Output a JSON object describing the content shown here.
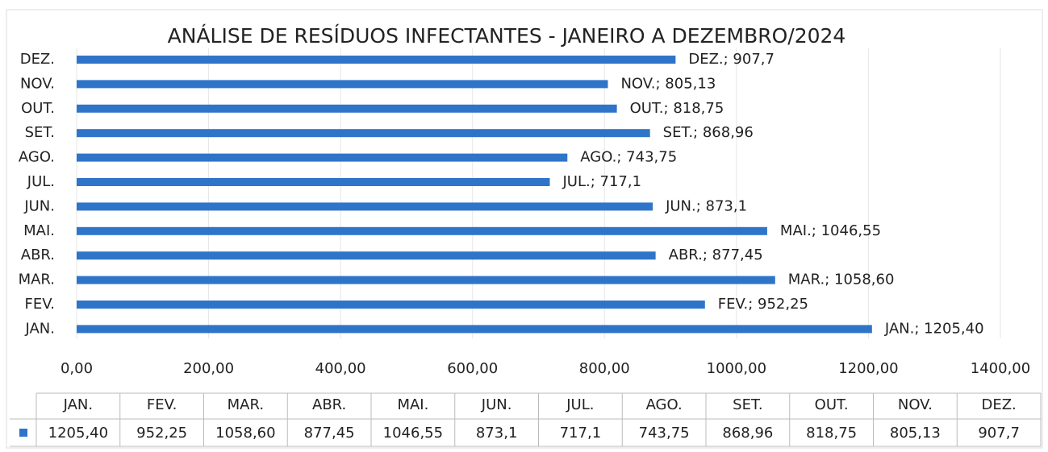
{
  "chart_data": {
    "type": "bar",
    "orientation": "horizontal",
    "title": "ANÁLISE DE RESÍDUOS INFECTANTES - JANEIRO A DEZEMBRO/2024",
    "categories": [
      "JAN.",
      "FEV.",
      "MAR.",
      "ABR.",
      "MAI.",
      "JUN.",
      "JUL.",
      "AGO.",
      "SET.",
      "OUT.",
      "NOV.",
      "DEZ."
    ],
    "values": [
      1205.4,
      952.25,
      1058.6,
      877.45,
      1046.55,
      873.1,
      717.1,
      743.75,
      868.96,
      818.75,
      805.13,
      907.7
    ],
    "value_labels": [
      "1205,40",
      "952,25",
      "1058,60",
      "877,45",
      "1046,55",
      "873,1",
      "717,1",
      "743,75",
      "868,96",
      "818,75",
      "805,13",
      "907,7"
    ],
    "data_labels": [
      "JAN.; 1205,40",
      "FEV.; 952,25",
      "MAR.; 1058,60",
      "ABR.; 877,45",
      "MAI.; 1046,55",
      "JUN.; 873,1",
      "JUL.; 717,1",
      "AGO.; 743,75",
      "SET.; 868,96",
      "OUT.; 818,75",
      "NOV.; 805,13",
      "DEZ.; 907,7"
    ],
    "color": "#2e75c9",
    "xlim": [
      0,
      1400
    ],
    "xticks": [
      {
        "value": 0,
        "label": "0,00"
      },
      {
        "value": 200,
        "label": "200,00"
      },
      {
        "value": 400,
        "label": "400,00"
      },
      {
        "value": 600,
        "label": "600,00"
      },
      {
        "value": 800,
        "label": "800,00"
      },
      {
        "value": 1000,
        "label": "1000,00"
      },
      {
        "value": 1200,
        "label": "1200,00"
      },
      {
        "value": 1400,
        "label": "1400,00"
      }
    ],
    "grid": true
  }
}
